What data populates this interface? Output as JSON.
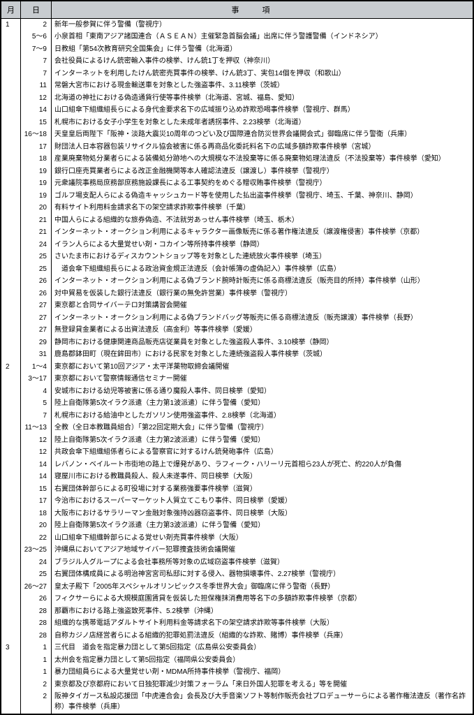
{
  "header": {
    "month": "月",
    "day": "日",
    "content": "事項"
  },
  "rows": [
    {
      "m": "1",
      "d": "2",
      "c": "新年一般参賀に伴う警備（警視庁）"
    },
    {
      "m": "",
      "d": "5～6",
      "c": "小泉首相「東南アジア諸国連合（ＡＳＥＡＮ）主催緊急首脳会議」出席に伴う警護警備（インドネシア）"
    },
    {
      "m": "",
      "d": "7～9",
      "c": "日教組「第54次教育研究全国集会」に伴う警備（北海道）"
    },
    {
      "m": "",
      "d": "7",
      "c": "会社役員によるけん銃密輸入事件の検挙、けん銃1丁を押収（神奈川）"
    },
    {
      "m": "",
      "d": "7",
      "c": "インターネットを利用したけん銃密売買事件の検挙、けん銃3丁、実包14個を押収（和歌山）"
    },
    {
      "m": "",
      "d": "11",
      "c": "常磐大宮市における現金輸送車を対象とした強盗事件、3.11検挙（茨城）"
    },
    {
      "m": "",
      "d": "12",
      "c": "北海道の神社における偽造通貨行使等事件検挙（北海道、宮城、福島、愛知）"
    },
    {
      "m": "",
      "d": "14",
      "c": "山口組傘下組織組長らによる身代金要求名下の広域振り込め詐欺恐喝事件検挙（警視庁、群馬）"
    },
    {
      "m": "",
      "d": "15",
      "c": "札幌市における女子小学生を対象とした未成年者誘拐事件、2.23検挙（北海道）"
    },
    {
      "m": "",
      "d": "16～18",
      "c": "天皇皇后両陛下「阪神・淡路大震災10周年のつどい及び国際連合防災世界会議開会式」御臨席に伴う警衛（兵庫）"
    },
    {
      "m": "",
      "d": "17",
      "c": "財団法人日本容器包装リサイクル協会被害に係る再商品化委託料名下の広域多額詐欺事件検挙（宮城）"
    },
    {
      "m": "",
      "d": "18",
      "c": "産業廃棄物処分業者らによる装備処分跡地への大規模な不法投棄等に係る廃棄物処理法違反（不法投棄等）事件検挙（愛知）"
    },
    {
      "m": "",
      "d": "19",
      "c": "銀行口座売買業者らによる改正金融機関等本人確認法違反（譲渡し）事件検挙（警視庁）"
    },
    {
      "m": "",
      "d": "19",
      "c": "元衆議院事務局庶務部庶務施設課長による工事契約をめぐる贈収賄事件検挙（警視庁）"
    },
    {
      "m": "",
      "d": "19",
      "c": "ゴルフ場支配人らによる偽造キャッシュカード等を使用した払出盗事件検挙（警視庁、埼玉、千葉、神奈川、静岡）"
    },
    {
      "m": "",
      "d": "20",
      "c": "有料サイト利用料金請求名下の架空請求詐欺事件検挙（千葉）"
    },
    {
      "m": "",
      "d": "21",
      "c": "中国人らによる組織的な旅券偽造、不法就労あっせん事件検挙（埼玉、栃木）"
    },
    {
      "m": "",
      "d": "21",
      "c": "インターネット・オークション利用によるキャラクター画像販売に係る著作権法違反（譲渡権侵害）事件検挙（京都）"
    },
    {
      "m": "",
      "d": "24",
      "c": "イラン人らによる大量覚せい剤・コカイン等所持事件検挙（静岡）"
    },
    {
      "m": "",
      "d": "25",
      "c": "さいたま市におけるディスカウントショップ等を対象とした連続放火事件検挙（埼玉）"
    },
    {
      "m": "",
      "d": "25",
      "c": "　道会傘下組織組長らによる政治資金規正法違反（会計帳簿の虚偽記入）事件検挙（広島）"
    },
    {
      "m": "",
      "d": "26",
      "c": "インターネット・オークション利用による偽ブランド腕時計販売に係る商標法違反（販売目的所持）事件検挙（山形）"
    },
    {
      "m": "",
      "d": "26",
      "c": "対中貿易を仮装した銀行法違反（銀行業の無免許営業）事件検挙（警視庁）"
    },
    {
      "m": "",
      "d": "27",
      "c": "東京都と合同サイバーテロ対策講習会開催"
    },
    {
      "m": "",
      "d": "27",
      "c": "インターネット・オークション利用による偽ブランドバッグ等販売に係る商標法違反（販売譲渡）事件検挙（長野）"
    },
    {
      "m": "",
      "d": "27",
      "c": "無登録貸金業者による出資法違反（高金利）等事件検挙（愛媛）"
    },
    {
      "m": "",
      "d": "29",
      "c": "静岡市における健康関連商品販売店従業員を対象とした強盗殺人事件、3.10検挙（静岡）"
    },
    {
      "m": "",
      "d": "31",
      "c": "鹿島郡鉢田町（現在鉾田市）における民家を対象とした連続強盗殺人事件検挙（茨城）"
    },
    {
      "m": "2",
      "d": "1～4",
      "c": "東京都において第10回アジア・太平洋薬物取締会議開催"
    },
    {
      "m": "",
      "d": "3～17",
      "c": "東京都において警察情報通信セミナー開催"
    },
    {
      "m": "",
      "d": "4",
      "c": "安城市における幼児等被害に係る通り魔殺人事件、同日検挙（愛知）"
    },
    {
      "m": "",
      "d": "5",
      "c": "陸上自衛隊第5次イラク派遣（主力第1波派遣）に伴う警備（愛知）"
    },
    {
      "m": "",
      "d": "7",
      "c": "札幌市における給油中としたガソリン使用強盗事件、2.8検挙（北海道）"
    },
    {
      "m": "",
      "d": "11～13",
      "c": "全教（全日本教職員組合）「第22回定期大会」に伴う警備（警視庁）"
    },
    {
      "m": "",
      "d": "12",
      "c": "陸上自衛隊第5次イラク派遣（主力第2波派遣）に伴う警備（愛知）"
    },
    {
      "m": "",
      "d": "12",
      "c": "共政会傘下組織組係者らによる警察官に対するけん銃発砲事件（広島）"
    },
    {
      "m": "",
      "d": "14",
      "c": "レバノン・ベイルート市街地の路上で爆発があり、ラフィーク・ハリーリ元首相ら23人が死亡、約220人が負傷"
    },
    {
      "m": "",
      "d": "14",
      "c": "寝屋川市における教職員殺人、殺人未遂事件、同日検挙（大阪）"
    },
    {
      "m": "",
      "d": "15",
      "c": "右翼団体幹部らによる町役場に対する業務強要事件検挙（滋賀）"
    },
    {
      "m": "",
      "d": "17",
      "c": "今治市におけるスーパーマーケット人質立てこもり事件、同日検挙（愛媛）"
    },
    {
      "m": "",
      "d": "18",
      "c": "大阪市におけるサラリーマン金融対象強持凶器窃盗事件、同日検挙（大阪）"
    },
    {
      "m": "",
      "d": "20",
      "c": "陸上自衛隊第5次イラク派遣（主力第3波派遣）に伴う警備（愛知）"
    },
    {
      "m": "",
      "d": "22",
      "c": "山口組傘下組織幹部らによる覚せい剤売買事件検挙（大阪）"
    },
    {
      "m": "",
      "d": "23～25",
      "c": "沖縄県においてアジア地域サイバー犯罪捜査技術会議開催"
    },
    {
      "m": "",
      "d": "24",
      "c": "ブラジル人グループによる会社事務所等対象の広域窃盗事件検挙（滋賀）"
    },
    {
      "m": "",
      "d": "25",
      "c": "右翼団体構成員による明治神宮宮司私邸に対する侵入、器物損壊事件、2.27検挙（警視庁）"
    },
    {
      "m": "",
      "d": "26～27",
      "c": "皇太子殿下「2005年スペシャルオリンピックス冬季世界大会」御臨席に伴う警衛（長野）"
    },
    {
      "m": "",
      "d": "26",
      "c": "フィクサーらによる大規模庭園賃貸を仮装した担保権抹消費用等名下の多額詐欺事件検挙（京都）"
    },
    {
      "m": "",
      "d": "28",
      "c": "那覇市における路上強盗致死事件、5.2検挙（沖縄）"
    },
    {
      "m": "",
      "d": "28",
      "c": "組織的な携帯電話アダルトサイト利用料金等請求名下の架空請求詐欺等事件検挙（大阪）"
    },
    {
      "m": "",
      "d": "28",
      "c": "自称カジノ店経営者らによる組織的犯罪処罰法違反（組織的な詐欺、賭博）事件検挙（兵庫）"
    },
    {
      "m": "3",
      "d": "1",
      "c": "三代目　道会を指定暴力団として第5回指定（広島県公安委員会）"
    },
    {
      "m": "",
      "d": "1",
      "c": "太州会を指定暴力団として第5回指定（福岡県公安委員会）"
    },
    {
      "m": "",
      "d": "1",
      "c": "暴力団組員らによる大量覚せい剤・MDMA所持事件検挙（警視庁、福岡）"
    },
    {
      "m": "",
      "d": "2",
      "c": "東京都及び京都府において日独犯罪減少対策フォーラム「来日外国人犯罪を考える」等を開催"
    },
    {
      "m": "",
      "d": "2",
      "c": "阪神タイガース私設応援団「中虎連合会」会長及び大手音楽ソフト等制作販売会社プロデューサーらによる著作権法違反（著作名詐称）事件検挙（兵庫）"
    }
  ]
}
